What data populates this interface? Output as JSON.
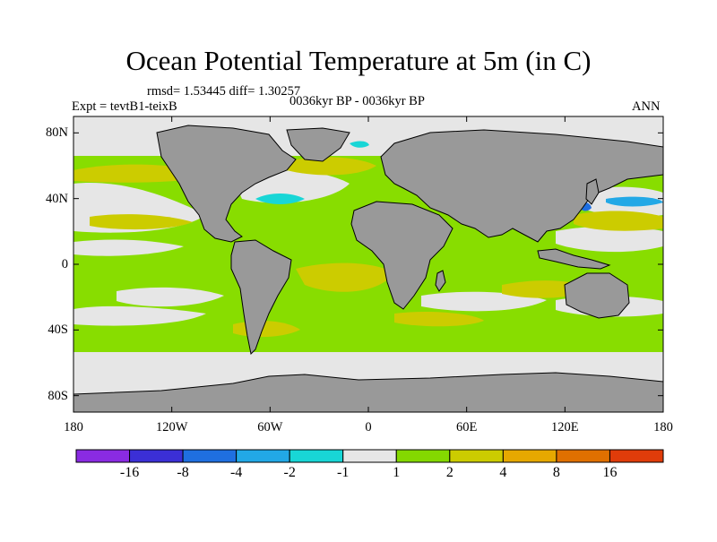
{
  "figure": {
    "title": "Ocean Potential Temperature at 5m (in C)",
    "stats_line": "rmsd= 1.53445  diff= 1.30257",
    "experiment": "Expt = tevtB1-teixB",
    "period": "0036kyr BP - 0036kyr BP",
    "season": "ANN"
  },
  "axes": {
    "lon_ticks": [
      {
        "label": "180",
        "value": -180
      },
      {
        "label": "120W",
        "value": -120
      },
      {
        "label": "60W",
        "value": -60
      },
      {
        "label": "0",
        "value": 0
      },
      {
        "label": "60E",
        "value": 60
      },
      {
        "label": "120E",
        "value": 120
      },
      {
        "label": "180",
        "value": 180
      }
    ],
    "lat_ticks": [
      {
        "label": "80N",
        "value": 80
      },
      {
        "label": "40N",
        "value": 40
      },
      {
        "label": "0",
        "value": 0
      },
      {
        "label": "40S",
        "value": -40
      },
      {
        "label": "80S",
        "value": -80
      }
    ],
    "lon_range": [
      -180,
      180
    ],
    "lat_range": [
      -90,
      90
    ]
  },
  "colorbar": {
    "colors": [
      "#8a2be2",
      "#3b2fd6",
      "#1f6fe0",
      "#22a8e6",
      "#18d6d6",
      "#e6e6e6",
      "#84d800",
      "#cccc00",
      "#e6a800",
      "#e07000",
      "#e03c0a"
    ],
    "labels": [
      "-16",
      "-8",
      "-4",
      "-2",
      "-1",
      "1",
      "2",
      "4",
      "8",
      "16"
    ]
  },
  "land_color": "#999999",
  "ocean_color": "#88dd00"
}
